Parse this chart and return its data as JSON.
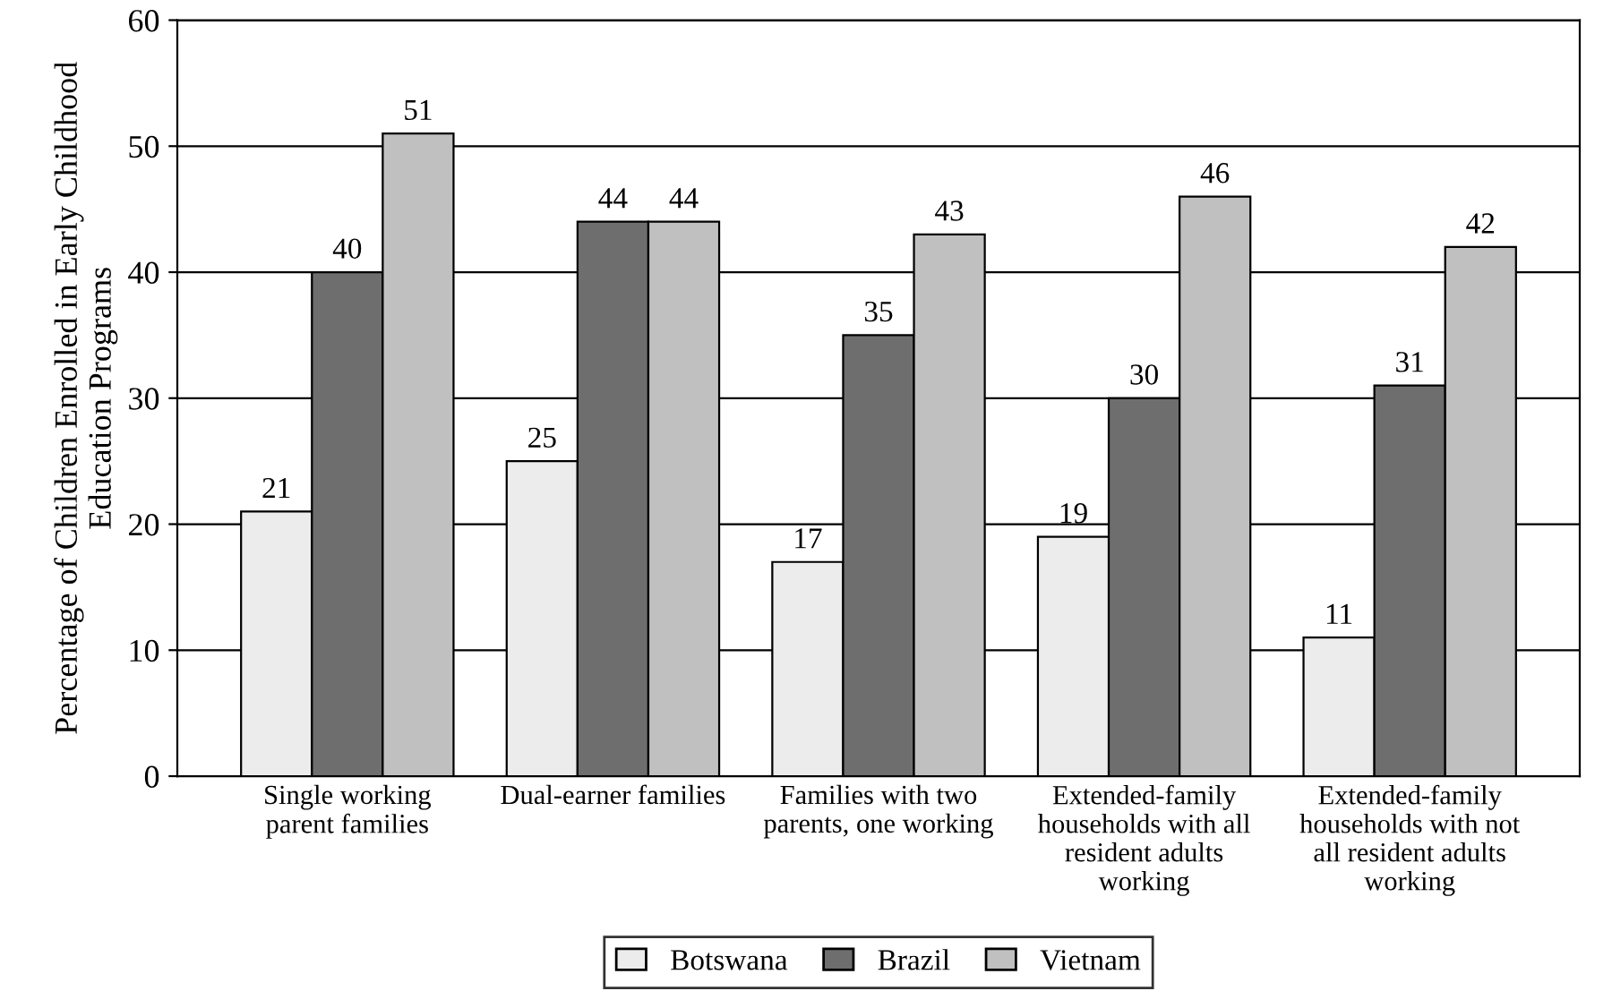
{
  "chart_data": {
    "type": "bar",
    "ylabel": "Percentage of Children Enrolled in Early Childhood\nEducation Programs",
    "categories": [
      "Single working\nparent families",
      "Dual-earner families",
      "Families with two\nparents, one working",
      "Extended-family\nhouseholds with all\nresident adults\nworking",
      "Extended-family\nhouseholds with not\nall resident adults\nworking"
    ],
    "series": [
      {
        "name": "Botswana",
        "color": "#ececec",
        "values": [
          21,
          25,
          17,
          19,
          11
        ]
      },
      {
        "name": "Brazil",
        "color": "#6e6e6e",
        "values": [
          40,
          44,
          35,
          30,
          31
        ]
      },
      {
        "name": "Vietnam",
        "color": "#c0c0c0",
        "values": [
          51,
          44,
          43,
          46,
          42
        ]
      }
    ],
    "ylim": [
      0,
      60
    ],
    "yticks": [
      0,
      10,
      20,
      30,
      40,
      50,
      60
    ],
    "grid": "y",
    "legend": "bottom",
    "data_labels": true
  }
}
